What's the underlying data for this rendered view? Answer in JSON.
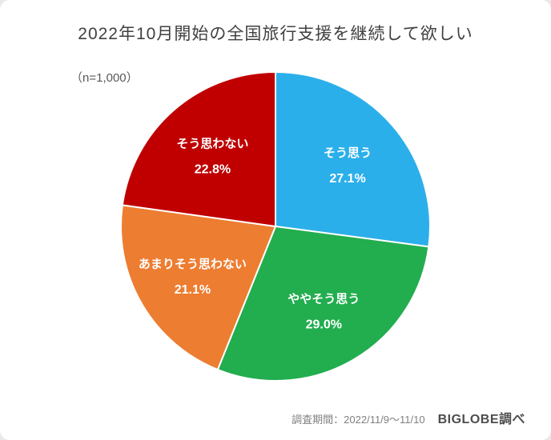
{
  "chart_data": {
    "type": "pie",
    "title": "2022年10月開始の全国旅行支援を継続して欲しい",
    "n_label": "（n=1,000）",
    "labels": [
      "そう思う",
      "ややそう思う",
      "あまりそう思わない",
      "そう思わない"
    ],
    "values": [
      27.1,
      29.0,
      21.1,
      22.8
    ],
    "value_labels": [
      "27.1%",
      "29.0%",
      "21.1%",
      "22.8%"
    ],
    "colors": [
      "#2BAFEA",
      "#22AD4F",
      "#ED7D31",
      "#C00000"
    ],
    "start_angle_deg": 0,
    "direction": "clockwise",
    "slice_label_color": "#ffffff",
    "legend": "none"
  },
  "footer": {
    "survey_period": "調査期間：2022/11/9～11/10",
    "source": "BIGLOBE調べ"
  }
}
